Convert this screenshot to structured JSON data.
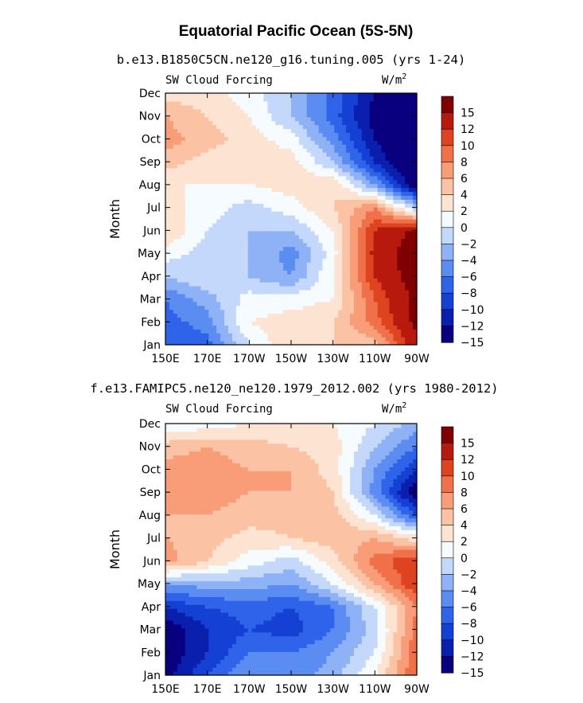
{
  "figure": {
    "main_title": "Equatorial Pacific Ocean (5S-5N)"
  },
  "chart_data": [
    {
      "type": "heatmap",
      "subtitle": "b.e13.B1850C5CN.ne120_g16.tuning.005 (yrs 1-24)",
      "left_label": "SW Cloud Forcing",
      "units_label": "W/m",
      "units_superscript": "2",
      "ylabel": "Month",
      "x_ticks": [
        "150E",
        "170E",
        "170W",
        "150W",
        "130W",
        "110W",
        "90W"
      ],
      "y_ticks": [
        "Jan",
        "Feb",
        "Mar",
        "Apr",
        "May",
        "Jun",
        "Jul",
        "Aug",
        "Sep",
        "Oct",
        "Nov",
        "Dec"
      ],
      "colorbar_labels": [
        "15",
        "12",
        "10",
        "8",
        "6",
        "4",
        "2",
        "0",
        "−2",
        "−4",
        "−6",
        "−8",
        "−10",
        "−12",
        "−15"
      ],
      "levels": [
        -15,
        -12,
        -10,
        -8,
        -6,
        -4,
        -2,
        0,
        2,
        4,
        6,
        8,
        10,
        12,
        15
      ],
      "palette": [
        "#08007f",
        "#0a1fae",
        "#1440d4",
        "#2f63ea",
        "#5b8cf2",
        "#8fb2f6",
        "#c4d8fb",
        "#f5fbff",
        "#fde4d2",
        "#fbc2a4",
        "#f89d78",
        "#f0704a",
        "#de4420",
        "#b8190d",
        "#7f0000"
      ],
      "x": [
        150,
        170,
        190,
        210,
        230,
        250,
        270
      ],
      "z": [
        [
          -8,
          -7,
          0,
          4,
          4,
          5,
          14
        ],
        [
          -7,
          -5,
          2,
          3,
          4,
          9,
          16
        ],
        [
          -6,
          -3,
          1,
          1,
          2,
          10,
          16
        ],
        [
          -2,
          0,
          -2,
          -4,
          2,
          12,
          17
        ],
        [
          1,
          -1,
          -2,
          -5,
          1,
          13,
          17
        ],
        [
          4,
          0,
          -2,
          -2,
          2,
          12,
          16
        ],
        [
          3,
          1,
          -1,
          1,
          4,
          8,
          -2
        ],
        [
          2,
          2,
          2,
          3,
          4,
          -4,
          -14
        ],
        [
          5,
          3,
          3,
          3,
          -2,
          -10,
          -16
        ],
        [
          7,
          5,
          3,
          1,
          -5,
          -12,
          -16
        ],
        [
          6,
          4,
          2,
          -2,
          -7,
          -13,
          -16
        ],
        [
          3,
          3,
          1,
          -2,
          -7,
          -12,
          -16
        ]
      ]
    },
    {
      "type": "heatmap",
      "subtitle": "f.e13.FAMIPC5.ne120_ne120.1979_2012.002 (yrs 1980-2012)",
      "left_label": "SW Cloud Forcing",
      "units_label": "W/m",
      "units_superscript": "2",
      "ylabel": "Month",
      "x_ticks": [
        "150E",
        "170E",
        "170W",
        "150W",
        "130W",
        "110W",
        "90W"
      ],
      "y_ticks": [
        "Jan",
        "Feb",
        "Mar",
        "Apr",
        "May",
        "Jun",
        "Jul",
        "Aug",
        "Sep",
        "Oct",
        "Nov",
        "Dec"
      ],
      "colorbar_labels": [
        "15",
        "12",
        "10",
        "8",
        "6",
        "4",
        "2",
        "0",
        "−2",
        "−4",
        "−6",
        "−8",
        "−10",
        "−12",
        "−15"
      ],
      "levels": [
        -15,
        -12,
        -10,
        -8,
        -6,
        -4,
        -2,
        0,
        2,
        4,
        6,
        8,
        10,
        12,
        15
      ],
      "palette": [
        "#08007f",
        "#0a1fae",
        "#1440d4",
        "#2f63ea",
        "#5b8cf2",
        "#8fb2f6",
        "#c4d8fb",
        "#f5fbff",
        "#fde4d2",
        "#fbc2a4",
        "#f89d78",
        "#f0704a",
        "#de4420",
        "#b8190d",
        "#7f0000"
      ],
      "x": [
        150,
        170,
        190,
        210,
        230,
        250,
        270
      ],
      "z": [
        [
          -13,
          -8,
          -4,
          -5,
          -3,
          2,
          10
        ],
        [
          -14,
          -10,
          -6,
          -6,
          -4,
          0,
          10
        ],
        [
          -14,
          -10,
          -8,
          -9,
          -6,
          -1,
          9
        ],
        [
          -10,
          -8,
          -7,
          -8,
          -6,
          0,
          8
        ],
        [
          -4,
          -3,
          -3,
          -4,
          0,
          6,
          12
        ],
        [
          7,
          4,
          1,
          -1,
          3,
          9,
          12
        ],
        [
          6,
          5,
          3,
          4,
          5,
          6,
          3
        ],
        [
          6,
          6,
          5,
          5,
          5,
          0,
          -8
        ],
        [
          7,
          7,
          6,
          6,
          4,
          -5,
          -14
        ],
        [
          7,
          7,
          6,
          6,
          3,
          -4,
          -10
        ],
        [
          5,
          6,
          5,
          4,
          3,
          -2,
          -6
        ],
        [
          0,
          1,
          2,
          2,
          2,
          0,
          -3
        ]
      ]
    }
  ]
}
